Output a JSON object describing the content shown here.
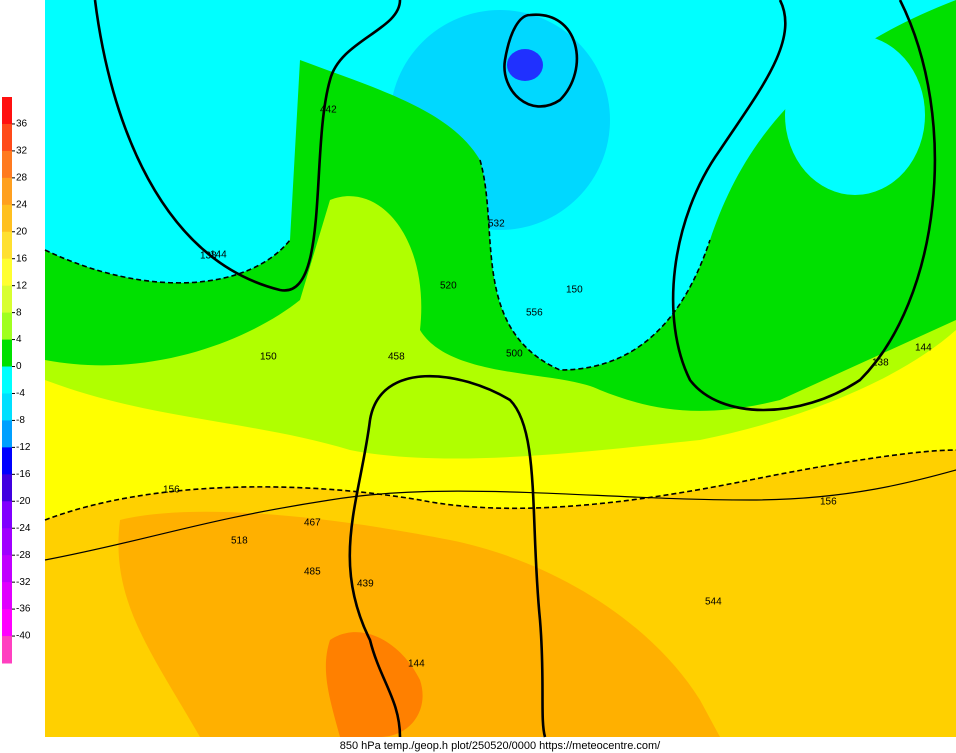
{
  "colorbar": {
    "lim": [
      -44,
      40
    ],
    "ticks": [
      36,
      32,
      28,
      24,
      20,
      16,
      12,
      8,
      4,
      0,
      -4,
      -8,
      -12,
      -16,
      -20,
      -24,
      -28,
      -32,
      -36,
      -40
    ],
    "colors": [
      "#ff1010",
      "#ff4a1a",
      "#ff7a20",
      "#ffa020",
      "#ffc020",
      "#ffe030",
      "#ffff30",
      "#d8ff30",
      "#a0ff20",
      "#00e000",
      "#00ffff",
      "#00e0ff",
      "#00a0ff",
      "#0000ff",
      "#4000e0",
      "#8000ff",
      "#a000ff",
      "#c000ff",
      "#e000ff",
      "#ff00ff",
      "#ff40c0"
    ]
  },
  "labels": [
    "144",
    "138",
    "156",
    "150",
    "144",
    "156",
    "144",
    "138",
    "150",
    "442",
    "520",
    "458",
    "532",
    "556",
    "500",
    "467",
    "485",
    "439",
    "518",
    "544"
  ],
  "footer": "850 hPa temp./geop.h plot/250520/0000 https://meteocentre.com/"
}
